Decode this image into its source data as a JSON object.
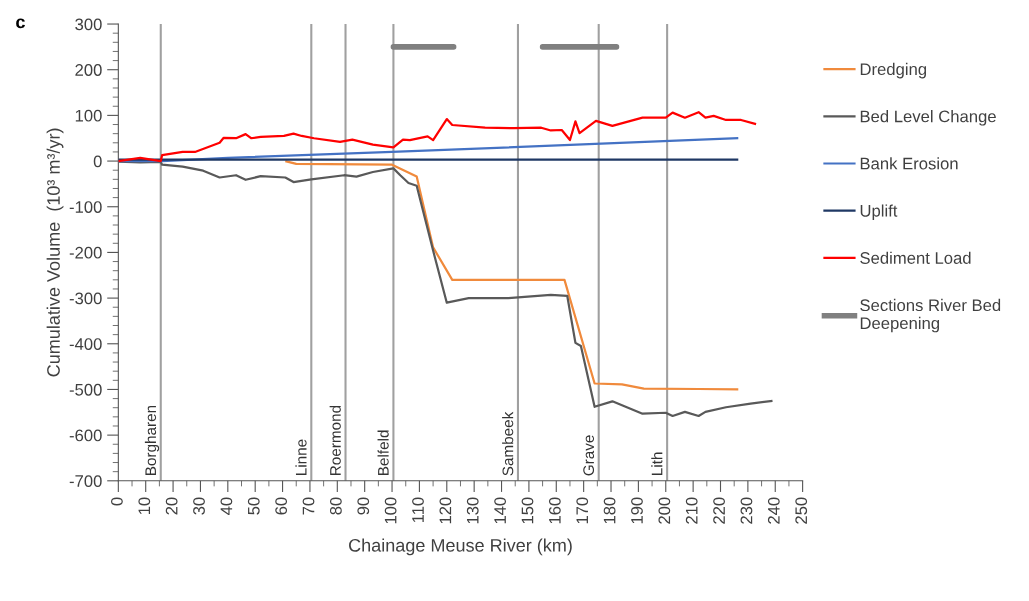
{
  "chart_data": {
    "type": "line",
    "title": "c",
    "xlabel": "Chainage Meuse River (km)",
    "ylabel": "Cumulative Volume  (10³ m³/yr)",
    "xlim": [
      0,
      250
    ],
    "xticks": [
      0,
      10,
      20,
      30,
      40,
      50,
      60,
      70,
      80,
      90,
      100,
      110,
      120,
      130,
      140,
      150,
      160,
      170,
      180,
      190,
      200,
      210,
      220,
      230,
      240,
      250
    ],
    "ylim": [
      -700,
      300
    ],
    "yticks": [
      -700,
      -600,
      -500,
      -400,
      -300,
      -200,
      -100,
      0,
      100,
      200,
      300
    ],
    "grid": false,
    "legend": "right",
    "marker": "none",
    "line_style": "solid",
    "ref_lines": [
      {
        "axis": "x",
        "value": 15.5,
        "label": "Borgharen",
        "color": "#a0a0a0"
      },
      {
        "axis": "x",
        "value": 70.5,
        "label": "Linne",
        "color": "#a0a0a0"
      },
      {
        "axis": "x",
        "value": 83,
        "label": "Roermond",
        "color": "#a0a0a0"
      },
      {
        "axis": "x",
        "value": 100.5,
        "label": "Belfeld",
        "color": "#a0a0a0"
      },
      {
        "axis": "x",
        "value": 146,
        "label": "Sambeek",
        "color": "#a0a0a0"
      },
      {
        "axis": "x",
        "value": 175.5,
        "label": "Grave",
        "color": "#a0a0a0"
      },
      {
        "axis": "x",
        "value": 200.5,
        "label": "Lith",
        "color": "#a0a0a0"
      }
    ],
    "series": [
      {
        "name": "Dredging",
        "color": "#f08a3c",
        "x": [
          61,
          65,
          100,
          109,
          115,
          122,
          163,
          174,
          184,
          192,
          212,
          226.5
        ],
        "values": [
          0,
          -6,
          -8,
          -34,
          -189,
          -260,
          -260,
          -487,
          -489,
          -498,
          -499,
          -500
        ]
      },
      {
        "name": "Bed Level Change",
        "color": "#595959",
        "x": [
          0,
          8,
          15.5,
          16,
          23.5,
          31,
          37,
          43,
          46.5,
          52,
          61,
          64,
          70.5,
          82.5,
          87,
          93,
          100.5,
          103,
          106,
          109,
          115,
          120,
          128,
          142.5,
          158,
          164,
          167,
          169,
          174,
          180.5,
          191.5,
          200,
          202.5,
          207,
          212,
          214.5,
          222,
          231,
          239
        ],
        "values": [
          -1,
          -3,
          -2,
          -8,
          -12,
          -21,
          -36,
          -31,
          -41,
          -33,
          -36,
          -46,
          -40,
          -31,
          -34,
          -24,
          -16,
          -31,
          -48,
          -54,
          -196,
          -310,
          -300,
          -300,
          -293,
          -295,
          -398,
          -405,
          -538,
          -526,
          -553,
          -551,
          -558,
          -549,
          -558,
          -549,
          -539,
          -531,
          -525
        ]
      },
      {
        "name": "Bank Erosion",
        "color": "#4472c4",
        "x": [
          0,
          16,
          40,
          100,
          226.5
        ],
        "values": [
          0,
          0,
          7,
          20,
          50
        ]
      },
      {
        "name": "Uplift",
        "color": "#1f3864",
        "x": [
          0,
          226.5
        ],
        "values": [
          3,
          3
        ]
      },
      {
        "name": "Sediment Load",
        "color": "#ff0000",
        "x": [
          0,
          8,
          15.5,
          16,
          23.5,
          28,
          37,
          38.5,
          43,
          46.5,
          48.5,
          52,
          60.5,
          64,
          67,
          71.5,
          81,
          85.5,
          93,
          100.5,
          104,
          106.5,
          113,
          115,
          120,
          122,
          134,
          144.5,
          154.5,
          158,
          162,
          165,
          167,
          168.5,
          174.5,
          180.5,
          191.5,
          200,
          202.5,
          207,
          212,
          214.5,
          217.5,
          222,
          227.5,
          233
        ],
        "values": [
          0,
          7,
          0,
          13,
          20,
          20,
          40,
          51,
          50,
          59,
          50,
          53,
          55,
          60,
          55,
          50,
          42,
          47,
          36,
          30,
          47,
          46,
          54,
          46,
          92,
          79,
          73,
          72,
          73,
          67,
          68,
          46,
          87,
          61,
          88,
          77,
          95,
          95,
          106,
          95,
          107,
          95,
          99,
          90,
          90,
          81
        ]
      },
      {
        "name": "Sections River Bed Deepening",
        "color": "#808080",
        "x": [
          100.5,
          122.5,
          140,
          155,
          182
        ],
        "values": [
          250,
          250,
          null,
          250,
          250
        ]
      }
    ]
  }
}
